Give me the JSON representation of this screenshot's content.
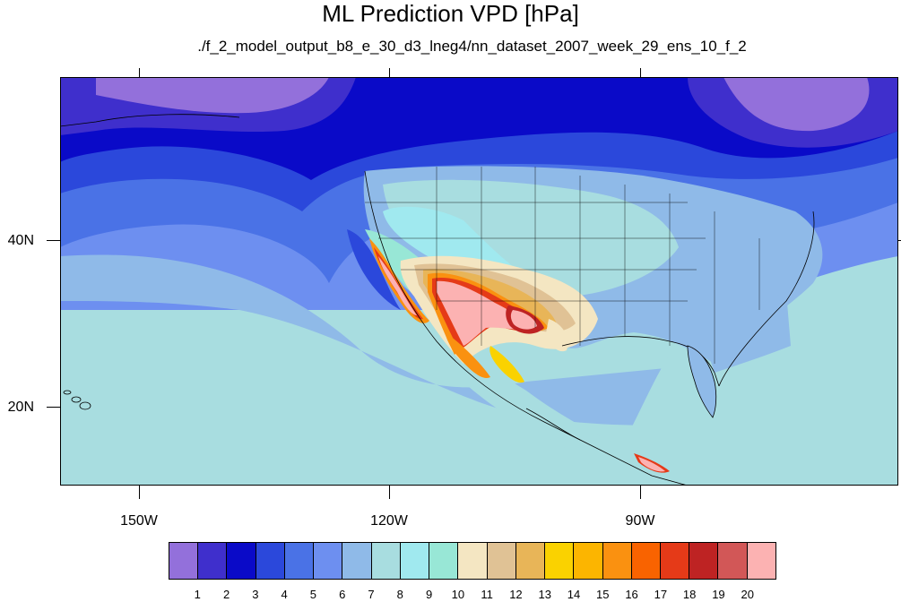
{
  "title": "ML Prediction VPD [hPa]",
  "subtitle": "./f_2_model_output_b8_e_30_d3_lneg4/nn_dataset_2007_week_29_ens_10_f_2",
  "lat_labels": [
    "40N",
    "20N"
  ],
  "lon_labels": [
    "150W",
    "120W",
    "90W"
  ],
  "colorbar": {
    "labels": [
      "1",
      "2",
      "3",
      "4",
      "5",
      "6",
      "7",
      "8",
      "9",
      "10",
      "11",
      "12",
      "13",
      "14",
      "15",
      "16",
      "17",
      "18",
      "19",
      "20"
    ],
    "colors": [
      "#9370db",
      "#3f2fcc",
      "#0a0ac8",
      "#2b48db",
      "#4a72e6",
      "#6d8ff0",
      "#8fbae8",
      "#a8dde0",
      "#a0e9ef",
      "#98e7d6",
      "#f4e6c2",
      "#e0c295",
      "#e8b558",
      "#fad200",
      "#fcb500",
      "#fa9110",
      "#f96300",
      "#e53a18",
      "#be2323",
      "#d25757",
      "#fcb2b2"
    ]
  },
  "map": {
    "lon_range": [
      -160,
      -60
    ],
    "lat_range": [
      10,
      60
    ]
  }
}
